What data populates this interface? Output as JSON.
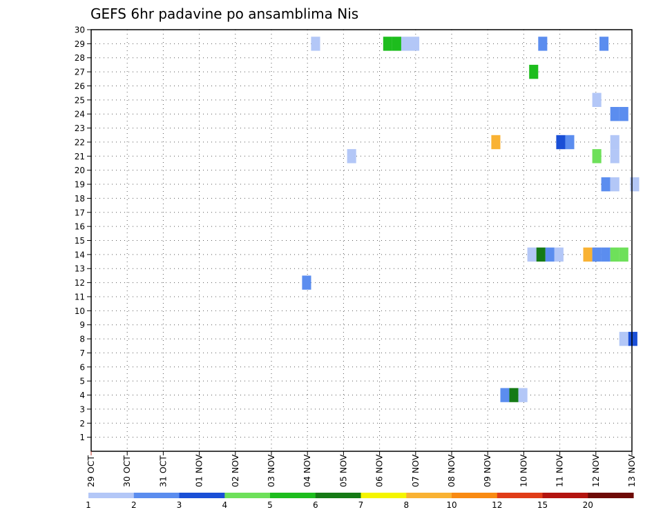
{
  "chart_data": {
    "type": "heatmap",
    "title": "GEFS 6hr padavine po ansamblima Nis",
    "x_labels": [
      "29 OCT",
      "30 OCT",
      "31 OCT",
      "01 NOV",
      "02 NOV",
      "03 NOV",
      "04 NOV",
      "05 NOV",
      "06 NOV",
      "07 NOV",
      "08 NOV",
      "09 NOV",
      "10 NOV",
      "11 NOV",
      "12 NOV",
      "13 NOV"
    ],
    "x_range_days": [
      0,
      15
    ],
    "y_range": [
      0,
      30
    ],
    "y_ticks": [
      1,
      2,
      3,
      4,
      5,
      6,
      7,
      8,
      9,
      10,
      11,
      12,
      13,
      14,
      15,
      16,
      17,
      18,
      19,
      20,
      21,
      22,
      23,
      24,
      25,
      26,
      27,
      28,
      29,
      30
    ],
    "grid": true,
    "legend": {
      "placement": "bottom",
      "colors": [
        "#b3c7f7",
        "#5b8def",
        "#1a4fd6",
        "#6ee05a",
        "#1dbd1d",
        "#157a15",
        "#f5f500",
        "#f9b233",
        "#f98a12",
        "#e03c18",
        "#b3140f",
        "#6e0a06"
      ],
      "labels": [
        "1",
        "2",
        "3",
        "4",
        "5",
        "6",
        "7",
        "8",
        "10",
        "12",
        "15",
        "20"
      ]
    },
    "cells": [
      {
        "member": 29,
        "day": 6.1,
        "cls": 0
      },
      {
        "member": 29,
        "day": 8.1,
        "cls": 4
      },
      {
        "member": 29,
        "day": 8.35,
        "cls": 4
      },
      {
        "member": 29,
        "day": 8.6,
        "cls": 0
      },
      {
        "member": 29,
        "day": 8.85,
        "cls": 0
      },
      {
        "member": 29,
        "day": 12.4,
        "cls": 1
      },
      {
        "member": 29,
        "day": 14.1,
        "cls": 1
      },
      {
        "member": 27,
        "day": 12.15,
        "cls": 4
      },
      {
        "member": 25,
        "day": 13.9,
        "cls": 0
      },
      {
        "member": 24,
        "day": 14.4,
        "cls": 1
      },
      {
        "member": 24,
        "day": 14.65,
        "cls": 1
      },
      {
        "member": 22,
        "day": 11.1,
        "cls": 7
      },
      {
        "member": 22,
        "day": 12.9,
        "cls": 2
      },
      {
        "member": 22,
        "day": 13.15,
        "cls": 1
      },
      {
        "member": 22,
        "day": 14.4,
        "cls": 0
      },
      {
        "member": 21,
        "day": 14.4,
        "cls": 0
      },
      {
        "member": 21,
        "day": 7.1,
        "cls": 0
      },
      {
        "member": 21,
        "day": 13.9,
        "cls": 3
      },
      {
        "member": 19,
        "day": 14.15,
        "cls": 1
      },
      {
        "member": 19,
        "day": 14.4,
        "cls": 0
      },
      {
        "member": 19,
        "day": 14.95,
        "cls": 0
      },
      {
        "member": 14,
        "day": 12.1,
        "cls": 0
      },
      {
        "member": 14,
        "day": 12.35,
        "cls": 5
      },
      {
        "member": 14,
        "day": 12.6,
        "cls": 1
      },
      {
        "member": 14,
        "day": 12.85,
        "cls": 0
      },
      {
        "member": 14,
        "day": 13.65,
        "cls": 7
      },
      {
        "member": 14,
        "day": 13.9,
        "cls": 1
      },
      {
        "member": 14,
        "day": 14.15,
        "cls": 1
      },
      {
        "member": 14,
        "day": 14.4,
        "cls": 3
      },
      {
        "member": 14,
        "day": 14.65,
        "cls": 3
      },
      {
        "member": 12,
        "day": 5.85,
        "cls": 1
      },
      {
        "member": 8,
        "day": 14.65,
        "cls": 0
      },
      {
        "member": 8,
        "day": 14.9,
        "cls": 2
      },
      {
        "member": 4,
        "day": 11.35,
        "cls": 1
      },
      {
        "member": 4,
        "day": 11.6,
        "cls": 5
      },
      {
        "member": 4,
        "day": 11.85,
        "cls": 0
      }
    ]
  }
}
